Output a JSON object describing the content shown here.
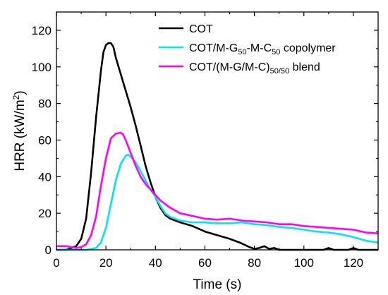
{
  "chart_data": {
    "type": "line",
    "xlabel": "Time (s)",
    "ylabel_main": "HRR (kW/m",
    "ylabel_sup": "2",
    "ylabel_tail": ")",
    "xlim": [
      0,
      130
    ],
    "ylim": [
      0,
      130
    ],
    "xticks": [
      0,
      20,
      40,
      60,
      80,
      100,
      120
    ],
    "yticks": [
      0,
      20,
      40,
      60,
      80,
      100,
      120
    ],
    "legend_position": "top-right",
    "series": [
      {
        "name": "COT",
        "legend_parts": [
          {
            "t": "COT",
            "s": "n"
          }
        ],
        "color": "#000000",
        "points": [
          [
            0,
            0
          ],
          [
            4,
            0
          ],
          [
            8,
            2
          ],
          [
            10,
            6
          ],
          [
            12,
            17
          ],
          [
            14,
            42
          ],
          [
            16,
            72
          ],
          [
            18,
            98
          ],
          [
            19,
            108
          ],
          [
            20,
            112
          ],
          [
            21,
            113
          ],
          [
            22,
            113
          ],
          [
            23,
            111
          ],
          [
            24,
            105
          ],
          [
            26,
            96
          ],
          [
            28,
            87
          ],
          [
            30,
            78
          ],
          [
            32,
            68
          ],
          [
            34,
            57
          ],
          [
            36,
            46
          ],
          [
            38,
            37
          ],
          [
            40,
            29
          ],
          [
            42,
            23
          ],
          [
            44,
            19
          ],
          [
            46,
            17
          ],
          [
            50,
            15
          ],
          [
            55,
            13
          ],
          [
            60,
            10
          ],
          [
            65,
            8
          ],
          [
            70,
            6
          ],
          [
            74,
            4
          ],
          [
            78,
            1.5
          ],
          [
            80,
            0.5
          ],
          [
            82,
            1
          ],
          [
            84,
            2
          ],
          [
            86,
            0.5
          ],
          [
            88,
            1
          ],
          [
            90,
            0
          ],
          [
            100,
            0
          ],
          [
            108,
            0
          ],
          [
            110,
            1
          ],
          [
            112,
            0
          ],
          [
            118,
            0
          ],
          [
            120,
            1
          ],
          [
            122,
            0
          ],
          [
            130,
            0
          ]
        ]
      },
      {
        "name": "COT/M-G50-M-C50 copolymer",
        "legend_parts": [
          {
            "t": "COT/M-G",
            "s": "n"
          },
          {
            "t": "50",
            "s": "sub"
          },
          {
            "t": "-M-C",
            "s": "n"
          },
          {
            "t": "50",
            "s": "sub"
          },
          {
            "t": " copolymer",
            "s": "n"
          }
        ],
        "color": "#00e5ee",
        "points": [
          [
            0,
            0
          ],
          [
            12,
            0
          ],
          [
            16,
            1
          ],
          [
            18,
            4
          ],
          [
            20,
            12
          ],
          [
            22,
            25
          ],
          [
            24,
            38
          ],
          [
            26,
            47
          ],
          [
            28,
            51.5
          ],
          [
            29,
            52
          ],
          [
            30,
            51
          ],
          [
            32,
            48
          ],
          [
            34,
            43
          ],
          [
            36,
            38
          ],
          [
            38,
            33
          ],
          [
            40,
            29
          ],
          [
            42,
            24
          ],
          [
            44,
            20
          ],
          [
            46,
            18
          ],
          [
            50,
            16
          ],
          [
            55,
            15
          ],
          [
            60,
            15
          ],
          [
            65,
            14.5
          ],
          [
            70,
            14.5
          ],
          [
            75,
            15
          ],
          [
            80,
            14
          ],
          [
            85,
            13.5
          ],
          [
            90,
            12.5
          ],
          [
            95,
            12
          ],
          [
            100,
            11
          ],
          [
            105,
            10
          ],
          [
            110,
            9.5
          ],
          [
            115,
            8.5
          ],
          [
            120,
            7
          ],
          [
            125,
            5
          ],
          [
            130,
            4
          ]
        ]
      },
      {
        "name": "COT/(M-G/M-C)50/50 blend",
        "legend_parts": [
          {
            "t": "COT/(M-G/M-C)",
            "s": "n"
          },
          {
            "t": "50/50",
            "s": "sub"
          },
          {
            "t": " blend",
            "s": "n"
          }
        ],
        "color": "#ff00ff",
        "points": [
          [
            0,
            2
          ],
          [
            4,
            2
          ],
          [
            8,
            1
          ],
          [
            10,
            1.5
          ],
          [
            12,
            3
          ],
          [
            14,
            8
          ],
          [
            16,
            18
          ],
          [
            18,
            35
          ],
          [
            20,
            50
          ],
          [
            22,
            61
          ],
          [
            24,
            63.5
          ],
          [
            26,
            64
          ],
          [
            27,
            63
          ],
          [
            28,
            60
          ],
          [
            30,
            53
          ],
          [
            32,
            46
          ],
          [
            34,
            40
          ],
          [
            36,
            36
          ],
          [
            38,
            33
          ],
          [
            40,
            30
          ],
          [
            42,
            27
          ],
          [
            44,
            25
          ],
          [
            46,
            23
          ],
          [
            50,
            20
          ],
          [
            55,
            18.5
          ],
          [
            60,
            17
          ],
          [
            65,
            16.5
          ],
          [
            70,
            17
          ],
          [
            75,
            16
          ],
          [
            80,
            15.5
          ],
          [
            85,
            15
          ],
          [
            90,
            14
          ],
          [
            95,
            14
          ],
          [
            100,
            13
          ],
          [
            105,
            12.5
          ],
          [
            110,
            12
          ],
          [
            115,
            11.5
          ],
          [
            120,
            11
          ],
          [
            125,
            9.5
          ],
          [
            130,
            9
          ]
        ]
      }
    ]
  }
}
